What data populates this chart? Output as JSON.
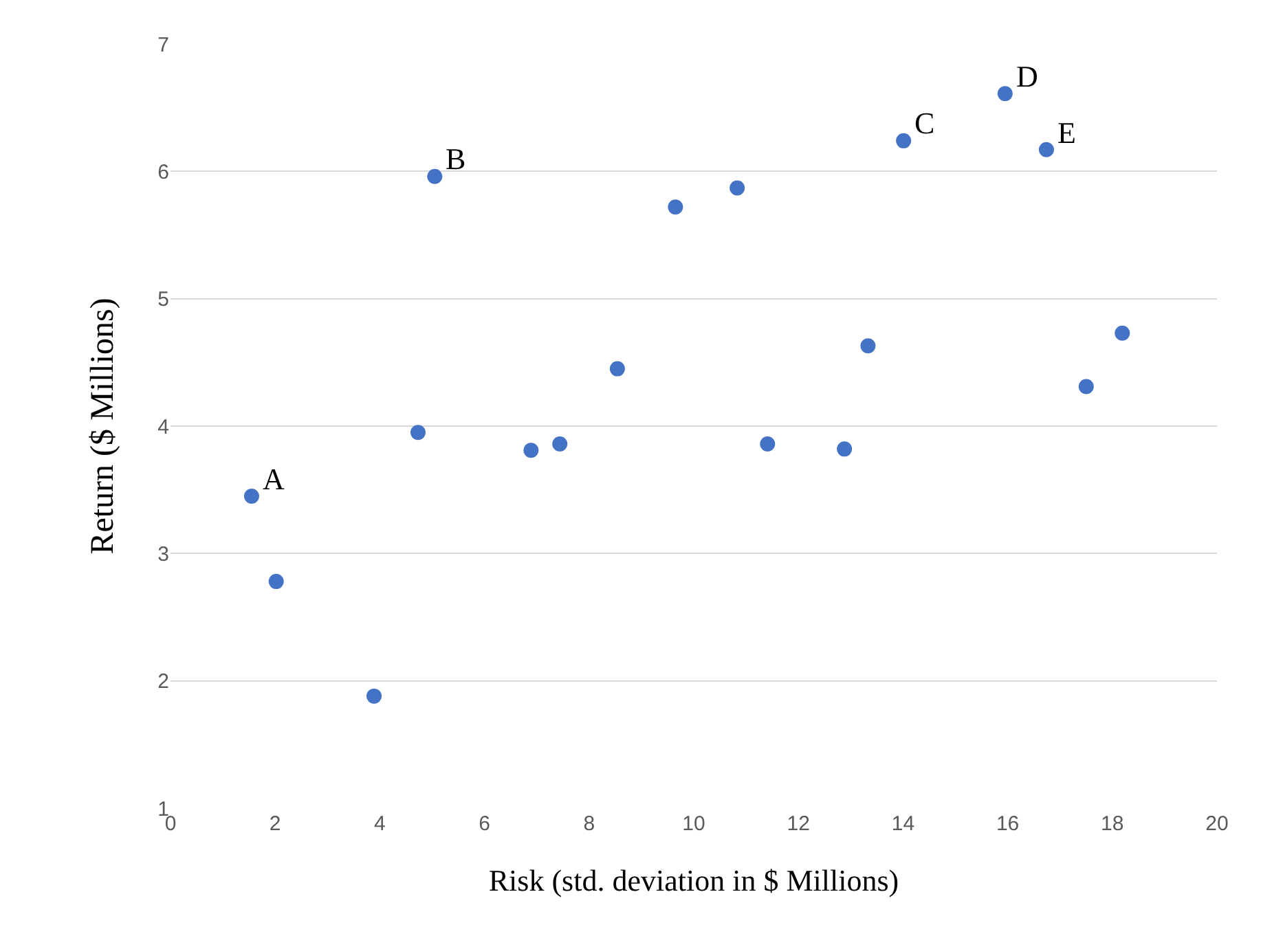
{
  "chart_data": {
    "type": "scatter",
    "xlabel": "Risk (std. deviation in $ Millions)",
    "ylabel": "Return ($ Millions)",
    "x": [
      1.55,
      2.02,
      3.89,
      4.73,
      5.05,
      6.89,
      7.44,
      8.54,
      9.65,
      10.83,
      11.41,
      12.88,
      13.33,
      14.01,
      15.95,
      16.74,
      17.5,
      18.19
    ],
    "series": [
      {
        "color": "#4472c4",
        "values": [
          3.45,
          2.78,
          1.88,
          3.95,
          5.96,
          3.81,
          3.86,
          4.45,
          5.72,
          5.87,
          3.86,
          3.82,
          4.63,
          6.24,
          6.61,
          6.17,
          4.31,
          4.73
        ]
      }
    ],
    "xlim": [
      0,
      20
    ],
    "xticks": [
      0,
      2,
      4,
      6,
      8,
      10,
      12,
      14,
      16,
      18,
      20
    ],
    "ylim": [
      1,
      7
    ],
    "yticks": [
      1,
      2,
      3,
      4,
      5,
      6,
      7
    ],
    "grid": "y",
    "marker": "circle",
    "annotations": [
      {
        "text": "A",
        "x": 1.55,
        "y": 3.45
      },
      {
        "text": "B",
        "x": 5.05,
        "y": 5.96
      },
      {
        "text": "C",
        "x": 14.01,
        "y": 6.24
      },
      {
        "text": "D",
        "x": 15.95,
        "y": 6.61
      },
      {
        "text": "E",
        "x": 16.74,
        "y": 6.17
      }
    ]
  }
}
